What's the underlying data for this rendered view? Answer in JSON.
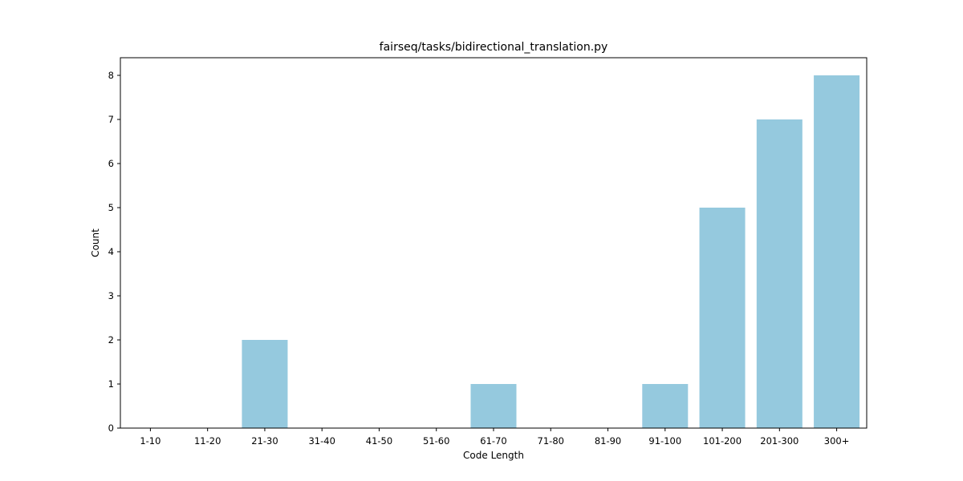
{
  "chart_data": {
    "type": "bar",
    "title": "fairseq/tasks/bidirectional_translation.py",
    "xlabel": "Code Length",
    "ylabel": "Count",
    "categories": [
      "1-10",
      "11-20",
      "21-30",
      "31-40",
      "41-50",
      "51-60",
      "61-70",
      "71-80",
      "81-90",
      "91-100",
      "101-200",
      "201-300",
      "300+"
    ],
    "values": [
      0,
      0,
      2,
      0,
      0,
      0,
      1,
      0,
      0,
      1,
      5,
      7,
      8
    ],
    "ylim": [
      0,
      8.4
    ],
    "yticks": [
      0,
      1,
      2,
      3,
      4,
      5,
      6,
      7,
      8
    ],
    "bar_color": "#95c9de",
    "grid": false,
    "legend": "none"
  }
}
